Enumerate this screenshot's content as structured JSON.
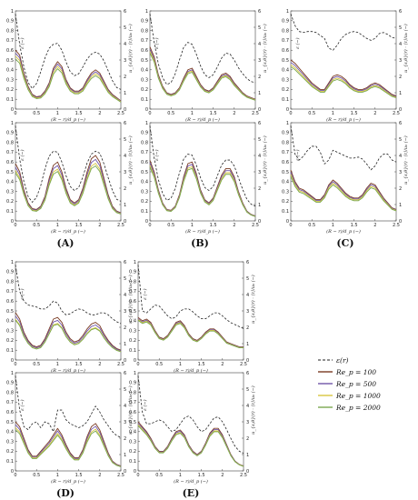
{
  "figure": {
    "panel_labels": [
      "(A)",
      "(B)",
      "(C)",
      "(D)",
      "(E)"
    ]
  },
  "chart_data": {
    "type": "line",
    "xlabel": "(R − r)/d_p  (−)",
    "ylabel_left": "ε  (−)",
    "ylabel_right": "u_{s,θ}(r) · ⟨τ⟩/u₀  (−)",
    "xlim": [
      0,
      2.5
    ],
    "ylim_left": [
      0,
      1
    ],
    "ylim_right": [
      0,
      6
    ],
    "x_ticks": [
      "0",
      "0.5",
      "1",
      "1.5",
      "2",
      "2.5"
    ],
    "y_ticks_left": [
      "0",
      "0.1",
      "0.2",
      "0.3",
      "0.4",
      "0.5",
      "0.6",
      "0.7",
      "0.8",
      "0.9",
      "1"
    ],
    "y_ticks_right": [
      "0",
      "1",
      "2",
      "3",
      "4",
      "5",
      "6"
    ],
    "legend": {
      "placement": "right",
      "entries": [
        {
          "label": "ε(r)",
          "style": "dashed",
          "color": "#222222"
        },
        {
          "label": "Re_p = 100",
          "color": "#7a3a22"
        },
        {
          "label": "Re_p = 500",
          "color": "#7055a8"
        },
        {
          "label": "Re_p = 1000",
          "color": "#d8c640"
        },
        {
          "label": "Re_p = 2000",
          "color": "#7aa84f"
        }
      ]
    },
    "x": [
      0,
      0.1,
      0.2,
      0.3,
      0.4,
      0.5,
      0.6,
      0.7,
      0.8,
      0.9,
      1.0,
      1.1,
      1.2,
      1.3,
      1.4,
      1.5,
      1.6,
      1.7,
      1.8,
      1.9,
      2.0,
      2.1,
      2.2,
      2.3,
      2.4,
      2.5
    ],
    "panels": [
      {
        "panel": "A",
        "row": 1,
        "porosity": [
          0.97,
          0.66,
          0.43,
          0.27,
          0.21,
          0.26,
          0.38,
          0.52,
          0.62,
          0.66,
          0.67,
          0.6,
          0.48,
          0.38,
          0.34,
          0.36,
          0.43,
          0.51,
          0.56,
          0.58,
          0.56,
          0.49,
          0.39,
          0.29,
          0.22,
          0.2
        ],
        "velocity": [
          3.6,
          3.3,
          2.2,
          1.4,
          0.9,
          0.75,
          0.8,
          1.1,
          1.6,
          2.5,
          2.9,
          2.6,
          1.8,
          1.3,
          1.1,
          1.1,
          1.3,
          1.8,
          2.2,
          2.4,
          2.2,
          1.7,
          1.2,
          0.9,
          0.7,
          0.5
        ],
        "scales": [
          1.0,
          0.95,
          0.9,
          0.85
        ]
      },
      {
        "panel": "B",
        "row": 1,
        "porosity": [
          0.97,
          0.68,
          0.46,
          0.32,
          0.25,
          0.27,
          0.36,
          0.5,
          0.63,
          0.68,
          0.66,
          0.56,
          0.44,
          0.35,
          0.32,
          0.35,
          0.43,
          0.52,
          0.57,
          0.56,
          0.5,
          0.42,
          0.36,
          0.31,
          0.28,
          0.27
        ],
        "velocity": [
          3.8,
          3.2,
          2.1,
          1.4,
          1.0,
          0.9,
          1.0,
          1.3,
          1.9,
          2.4,
          2.5,
          2.0,
          1.5,
          1.2,
          1.1,
          1.3,
          1.7,
          2.1,
          2.2,
          2.0,
          1.6,
          1.3,
          1.0,
          0.8,
          0.7,
          0.6
        ],
        "scales": [
          1.0,
          0.96,
          0.93,
          0.9
        ]
      },
      {
        "panel": "C",
        "row": 1,
        "porosity": [
          0.97,
          0.85,
          0.79,
          0.78,
          0.79,
          0.79,
          0.78,
          0.75,
          0.72,
          0.62,
          0.6,
          0.65,
          0.72,
          0.76,
          0.78,
          0.79,
          0.78,
          0.75,
          0.72,
          0.7,
          0.72,
          0.77,
          0.78,
          0.76,
          0.73,
          0.72
        ],
        "velocity": [
          3.0,
          2.8,
          2.5,
          2.2,
          1.9,
          1.6,
          1.4,
          1.2,
          1.2,
          1.6,
          2.0,
          2.1,
          2.0,
          1.8,
          1.5,
          1.3,
          1.2,
          1.2,
          1.3,
          1.5,
          1.6,
          1.5,
          1.3,
          1.1,
          0.9,
          0.8
        ],
        "scales": [
          1.0,
          0.95,
          0.9,
          0.86
        ]
      },
      {
        "panel": "A",
        "row": 2,
        "porosity": [
          0.97,
          0.63,
          0.4,
          0.25,
          0.19,
          0.24,
          0.36,
          0.53,
          0.66,
          0.71,
          0.7,
          0.6,
          0.46,
          0.35,
          0.31,
          0.34,
          0.45,
          0.59,
          0.68,
          0.71,
          0.69,
          0.58,
          0.44,
          0.31,
          0.22,
          0.2
        ],
        "velocity": [
          3.5,
          3.0,
          1.9,
          1.1,
          0.75,
          0.7,
          0.9,
          1.5,
          2.6,
          3.4,
          3.6,
          3.0,
          2.0,
          1.3,
          1.1,
          1.3,
          2.0,
          3.0,
          3.8,
          4.0,
          3.6,
          2.6,
          1.6,
          0.9,
          0.6,
          0.5
        ],
        "scales": [
          1.0,
          0.94,
          0.88,
          0.84
        ]
      },
      {
        "panel": "B",
        "row": 2,
        "porosity": [
          0.97,
          0.64,
          0.42,
          0.28,
          0.21,
          0.23,
          0.33,
          0.49,
          0.63,
          0.68,
          0.67,
          0.57,
          0.44,
          0.34,
          0.31,
          0.35,
          0.46,
          0.57,
          0.62,
          0.62,
          0.56,
          0.44,
          0.32,
          0.22,
          0.17,
          0.15
        ],
        "velocity": [
          3.7,
          3.0,
          1.9,
          1.1,
          0.7,
          0.65,
          0.9,
          1.6,
          2.7,
          3.5,
          3.6,
          2.9,
          1.9,
          1.3,
          1.1,
          1.4,
          2.1,
          2.8,
          3.2,
          3.2,
          2.7,
          1.8,
          1.1,
          0.6,
          0.4,
          0.3
        ],
        "scales": [
          1.0,
          0.96,
          0.92,
          0.89
        ]
      },
      {
        "panel": "C",
        "row": 2,
        "porosity": [
          0.97,
          0.68,
          0.62,
          0.66,
          0.72,
          0.76,
          0.76,
          0.7,
          0.58,
          0.62,
          0.72,
          0.7,
          0.68,
          0.66,
          0.64,
          0.64,
          0.65,
          0.63,
          0.58,
          0.52,
          0.56,
          0.64,
          0.68,
          0.68,
          0.62,
          0.6
        ],
        "velocity": [
          3.1,
          2.4,
          2.0,
          1.9,
          1.7,
          1.5,
          1.3,
          1.3,
          1.6,
          2.2,
          2.5,
          2.3,
          2.0,
          1.7,
          1.5,
          1.4,
          1.4,
          1.6,
          2.0,
          2.3,
          2.2,
          1.8,
          1.4,
          1.1,
          0.8,
          0.7
        ],
        "scales": [
          1.0,
          0.96,
          0.92,
          0.88
        ]
      },
      {
        "panel": "D",
        "row": 1,
        "porosity": [
          0.97,
          0.7,
          0.6,
          0.56,
          0.55,
          0.54,
          0.52,
          0.52,
          0.55,
          0.6,
          0.58,
          0.5,
          0.46,
          0.47,
          0.5,
          0.52,
          0.51,
          0.48,
          0.46,
          0.46,
          0.48,
          0.48,
          0.46,
          0.42,
          0.39,
          0.37
        ],
        "velocity": [
          2.9,
          2.5,
          1.7,
          1.2,
          0.9,
          0.8,
          0.9,
          1.3,
          1.9,
          2.5,
          2.6,
          2.3,
          1.7,
          1.3,
          1.1,
          1.2,
          1.5,
          1.9,
          2.2,
          2.3,
          2.1,
          1.6,
          1.2,
          0.9,
          0.7,
          0.6
        ],
        "scales": [
          1.0,
          0.93,
          0.86,
          0.84
        ]
      },
      {
        "panel": "E",
        "row": 1,
        "porosity": [
          0.97,
          0.5,
          0.48,
          0.52,
          0.56,
          0.55,
          0.5,
          0.45,
          0.42,
          0.44,
          0.5,
          0.52,
          0.52,
          0.49,
          0.45,
          0.42,
          0.42,
          0.45,
          0.48,
          0.48,
          0.45,
          0.41,
          0.38,
          0.36,
          0.34,
          0.32
        ],
        "velocity": [
          2.6,
          2.4,
          2.5,
          2.3,
          1.8,
          1.4,
          1.3,
          1.5,
          1.9,
          2.3,
          2.4,
          2.1,
          1.6,
          1.3,
          1.2,
          1.4,
          1.7,
          1.9,
          1.9,
          1.7,
          1.4,
          1.1,
          1.0,
          0.9,
          0.8,
          0.8
        ],
        "scales": [
          1.0,
          0.97,
          0.95,
          0.93
        ]
      },
      {
        "panel": "D",
        "row": 2,
        "porosity": [
          0.97,
          0.62,
          0.45,
          0.42,
          0.48,
          0.5,
          0.44,
          0.5,
          0.48,
          0.4,
          0.62,
          0.62,
          0.52,
          0.48,
          0.46,
          0.44,
          0.46,
          0.5,
          0.58,
          0.66,
          0.6,
          0.52,
          0.46,
          0.4,
          0.36,
          0.34
        ],
        "velocity": [
          3.0,
          2.7,
          2.0,
          1.3,
          0.9,
          0.9,
          1.2,
          1.5,
          1.8,
          2.2,
          2.6,
          2.2,
          1.6,
          1.1,
          0.8,
          0.8,
          1.3,
          2.1,
          2.7,
          2.9,
          2.5,
          1.8,
          1.1,
          0.6,
          0.4,
          0.3
        ],
        "scales": [
          1.0,
          0.94,
          0.88,
          0.84
        ]
      },
      {
        "panel": "E",
        "row": 2,
        "porosity": [
          0.97,
          0.6,
          0.48,
          0.48,
          0.5,
          0.52,
          0.5,
          0.45,
          0.4,
          0.42,
          0.48,
          0.54,
          0.56,
          0.52,
          0.45,
          0.4,
          0.42,
          0.48,
          0.54,
          0.55,
          0.5,
          0.42,
          0.33,
          0.25,
          0.2,
          0.18
        ],
        "velocity": [
          3.0,
          2.7,
          2.4,
          2.0,
          1.5,
          1.2,
          1.2,
          1.5,
          2.0,
          2.4,
          2.5,
          2.2,
          1.6,
          1.2,
          1.0,
          1.2,
          1.7,
          2.3,
          2.6,
          2.6,
          2.2,
          1.6,
          1.0,
          0.6,
          0.4,
          0.3
        ],
        "scales": [
          1.0,
          0.97,
          0.94,
          0.92
        ]
      }
    ]
  }
}
